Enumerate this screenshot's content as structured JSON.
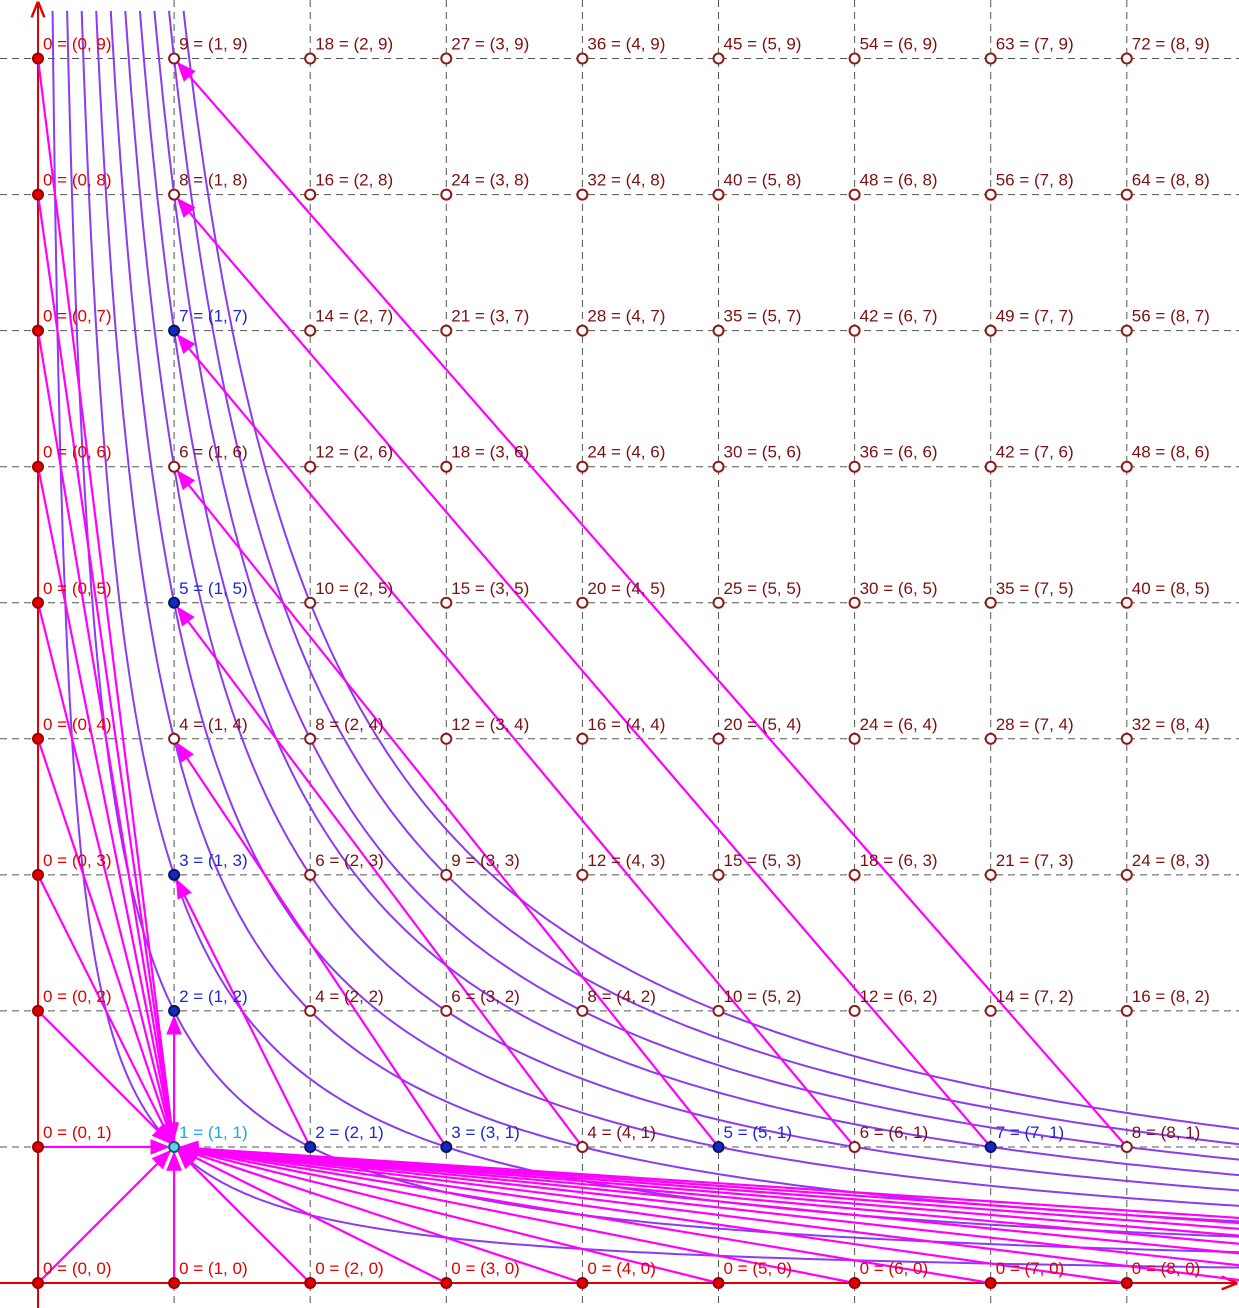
{
  "points": [
    [
      "0 = (0, 0)",
      "0 = (0, 1)",
      "0 = (0, 2)",
      "0 = (0, 3)",
      "0 = (0, 4)",
      "0 = (0, 5)",
      "0 = (0, 6)",
      "0 = (0, 7)",
      "0 = (0, 8)",
      "0 = (0, 9)"
    ],
    [
      "0 = (1, 0)",
      "1 = (1, 1)",
      "2 = (1, 2)",
      "3 = (1, 3)",
      "4 = (1, 4)",
      "5 = (1, 5)",
      "6 = (1, 6)",
      "7 = (1, 7)",
      "8 = (1, 8)",
      "9 = (1, 9)"
    ],
    [
      "0 = (2, 0)",
      "2 = (2, 1)",
      "4 = (2, 2)",
      "6 = (2, 3)",
      "8 = (2, 4)",
      "10 = (2, 5)",
      "12 = (2, 6)",
      "14 = (2, 7)",
      "16 = (2, 8)",
      "18 = (2, 9)"
    ],
    [
      "0 = (3, 0)",
      "3 = (3, 1)",
      "6 = (3, 2)",
      "9 = (3, 3)",
      "12 = (3, 4)",
      "15 = (3, 5)",
      "18 = (3, 6)",
      "21 = (3, 7)",
      "24 = (3, 8)",
      "27 = (3, 9)"
    ],
    [
      "0 = (4, 0)",
      "4 = (4, 1)",
      "8 = (4, 2)",
      "12 = (4, 3)",
      "16 = (4, 4)",
      "20 = (4, 5)",
      "24 = (4, 6)",
      "28 = (4, 7)",
      "32 = (4, 8)",
      "36 = (4, 9)"
    ],
    [
      "0 = (5, 0)",
      "5 = (5, 1)",
      "10 = (5, 2)",
      "15 = (5, 3)",
      "20 = (5, 4)",
      "25 = (5, 5)",
      "30 = (5, 6)",
      "35 = (5, 7)",
      "40 = (5, 8)",
      "45 = (5, 9)"
    ],
    [
      "0 = (6, 0)",
      "6 = (6, 1)",
      "12 = (6, 2)",
      "18 = (6, 3)",
      "24 = (6, 4)",
      "30 = (6, 5)",
      "36 = (6, 6)",
      "42 = (6, 7)",
      "48 = (6, 8)",
      "54 = (6, 9)"
    ],
    [
      "0 = (7, 0)",
      "7 = (7, 1)",
      "14 = (7, 2)",
      "21 = (7, 3)",
      "28 = (7, 4)",
      "35 = (7, 5)",
      "42 = (7, 6)",
      "49 = (7, 7)",
      "56 = (7, 8)",
      "63 = (7, 9)"
    ],
    [
      "0 = (8, 0)",
      "8 = (8, 1)",
      "16 = (8, 2)",
      "24 = (8, 3)",
      "32 = (8, 4)",
      "40 = (8, 5)",
      "48 = (8, 6)",
      "56 = (8, 7)",
      "64 = (8, 8)",
      "72 = (8, 9)"
    ]
  ]
}
